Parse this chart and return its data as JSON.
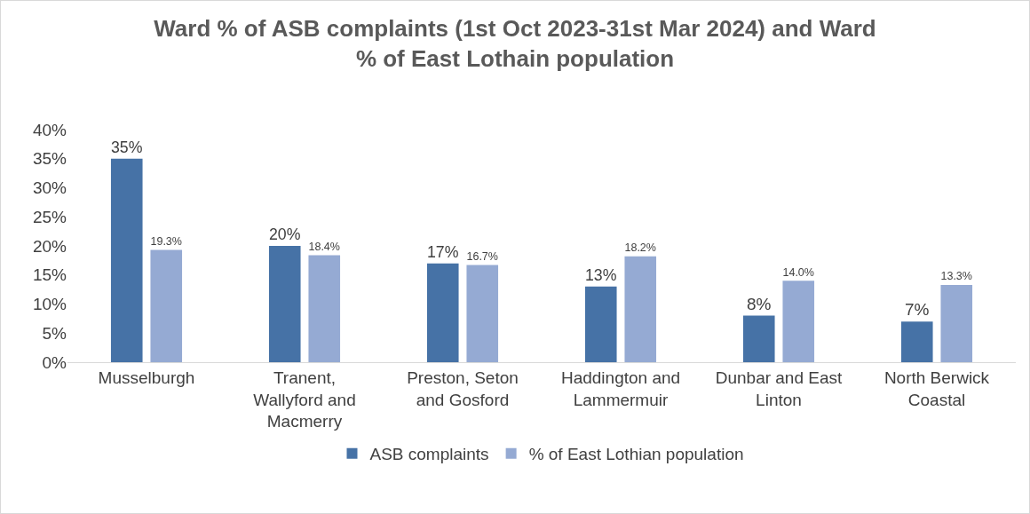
{
  "chart_data": {
    "type": "bar",
    "title": "Ward % of ASB complaints (1st Oct 2023-31st Mar 2024) and Ward % of East Lothain population",
    "categories": [
      "Musselburgh",
      "Tranent, Wallyford and Macmerry",
      "Preston, Seton and Gosford",
      "Haddington and Lammermuir",
      "Dunbar and East Linton",
      "North Berwick Coastal"
    ],
    "series": [
      {
        "name": "ASB complaints",
        "color": "#4672a6",
        "values": [
          35,
          20,
          17,
          13,
          8,
          7
        ],
        "value_labels": [
          "35%",
          "20%",
          "17%",
          "13%",
          "8%",
          "7%"
        ]
      },
      {
        "name": "% of East Lothian population",
        "color": "#95aad3",
        "values": [
          19.3,
          18.4,
          16.7,
          18.2,
          14.0,
          13.3
        ],
        "value_labels": [
          "19.3%",
          "18.4%",
          "16.7%",
          "18.2%",
          "14.0%",
          "13.3%"
        ]
      }
    ],
    "ylim": [
      0,
      40
    ],
    "yticks": [
      {
        "value": 0,
        "label": "0%"
      },
      {
        "value": 5,
        "label": "5%"
      },
      {
        "value": 10,
        "label": "10%"
      },
      {
        "value": 15,
        "label": "15%"
      },
      {
        "value": 20,
        "label": "20%"
      },
      {
        "value": 25,
        "label": "25%"
      },
      {
        "value": 30,
        "label": "30%"
      },
      {
        "value": 35,
        "label": "35%"
      },
      {
        "value": 40,
        "label": "40%"
      }
    ],
    "grid": false,
    "legend": "bottom"
  }
}
